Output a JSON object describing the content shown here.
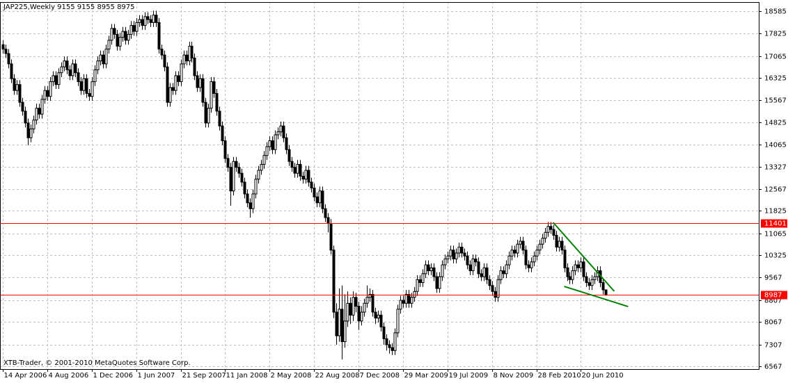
{
  "chart_data": {
    "type": "candlestick",
    "title": "JAP225,Weekly  9155 9155 8955 8975",
    "watermark": "XTB-Trader, © 2001-2010 MetaQuotes Software Corp.",
    "xlim": [
      -1,
      272
    ],
    "ylim": [
      6473,
      18891
    ],
    "grid": true,
    "bull_color": "#ffffff",
    "bear_color": "#000000",
    "outline_color": "#000000",
    "yticks": [
      18585,
      17825,
      17065,
      16325,
      15567,
      14825,
      14065,
      13327,
      12567,
      11825,
      11065,
      10325,
      9567,
      8807,
      8067,
      7307,
      6567
    ],
    "xticks": [
      {
        "value": 0,
        "label": "14 Apr 2006"
      },
      {
        "value": 16,
        "label": "4 Aug 2006"
      },
      {
        "value": 32,
        "label": "1 Dec 2006"
      },
      {
        "value": 48,
        "label": "1 Jun 2007"
      },
      {
        "value": 64,
        "label": "21 Sep 2007"
      },
      {
        "value": 80,
        "label": "11 Jan 2008"
      },
      {
        "value": 96,
        "label": "2 May 2008"
      },
      {
        "value": 112,
        "label": "22 Aug 2008"
      },
      {
        "value": 128,
        "label": "7 Dec 2008"
      },
      {
        "value": 144,
        "label": "29 Mar 2009"
      },
      {
        "value": 160,
        "label": "19 Jul 2009"
      },
      {
        "value": 176,
        "label": "8 Nov 2009"
      },
      {
        "value": 192,
        "label": "28 Feb 2010"
      },
      {
        "value": 208,
        "label": "20 Jun 2010"
      }
    ],
    "hlines": [
      {
        "value": 11401,
        "label": "11401",
        "color": "#ff0000"
      },
      {
        "value": 8987,
        "label": "8987",
        "color": "#ff0000"
      }
    ],
    "trendlines": [
      {
        "color": "#008000",
        "x": [
          198,
          220
        ],
        "y": [
          11435,
          9107
        ]
      },
      {
        "color": "#008000",
        "x": [
          202,
          225
        ],
        "y": [
          9271,
          8589
        ]
      }
    ],
    "open": [
      17450,
      17300,
      17150,
      16800,
      16300,
      15900,
      16100,
      15500,
      15200,
      14800,
      14300,
      14600,
      14900,
      15300,
      15100,
      15600,
      15900,
      15700,
      16200,
      16400,
      16100,
      16500,
      16700,
      16900,
      16600,
      16400,
      16800,
      16500,
      16200,
      15900,
      16300,
      15800,
      15700,
      16200,
      16600,
      16900,
      17100,
      16800,
      17300,
      17600,
      18000,
      17800,
      17400,
      17700,
      17900,
      17600,
      17800,
      18100,
      17900,
      18200,
      18300,
      18100,
      18400,
      18300,
      18200,
      18450,
      18200,
      17300,
      17100,
      16700,
      15500,
      16000,
      15900,
      16400,
      16200,
      16800,
      17100,
      16900,
      17400,
      17000,
      16400,
      16000,
      16300,
      15500,
      14800,
      15300,
      16200,
      15800,
      15200,
      14700,
      14200,
      13600,
      13300,
      12500,
      13500,
      13300,
      13100,
      12800,
      12400,
      12100,
      11900,
      12400,
      12900,
      13200,
      13400,
      13700,
      14000,
      14200,
      13900,
      14400,
      14500,
      14700,
      14300,
      13900,
      13500,
      13300,
      13100,
      13400,
      13000,
      12900,
      13200,
      12800,
      12600,
      12300,
      12100,
      12500,
      11900,
      11600,
      11400,
      10500,
      8400,
      7600,
      8500,
      7400,
      8100,
      8700,
      8300,
      8900,
      8600,
      8100,
      8400,
      8700,
      8900,
      9000,
      8400,
      8200,
      8300,
      7900,
      7500,
      7300,
      7200,
      7100,
      7700,
      8500,
      8800,
      8700,
      9000,
      8700,
      8900,
      9100,
      9500,
      9400,
      9700,
      10000,
      9800,
      9900,
      9600,
      9200,
      9600,
      10000,
      10200,
      10300,
      10500,
      10200,
      10400,
      10600,
      10400,
      10300,
      10000,
      9800,
      10200,
      10100,
      9700,
      9600,
      9900,
      9500,
      9300,
      9100,
      8900,
      9500,
      9800,
      9700,
      10000,
      10300,
      10500,
      10400,
      10700,
      10800,
      10500,
      10000,
      9900,
      10100,
      10300,
      10500,
      10700,
      10900,
      11100,
      11300,
      11200,
      11000,
      10600,
      10800,
      10500,
      9900,
      9600,
      9500,
      9800,
      10000,
      9900,
      10100,
      9600,
      9400,
      9300,
      9500,
      9600,
      9800,
      9400,
      9155
    ],
    "high": [
      17600,
      17450,
      17300,
      16950,
      16450,
      16250,
      16250,
      15650,
      15350,
      14950,
      14750,
      15050,
      15450,
      15450,
      15750,
      16050,
      16050,
      16350,
      16550,
      16550,
      16650,
      16850,
      17050,
      17050,
      16750,
      16950,
      16950,
      16650,
      16350,
      16450,
      16450,
      15950,
      16350,
      16750,
      17050,
      17250,
      17250,
      17450,
      17750,
      18150,
      18150,
      17950,
      17850,
      18050,
      18050,
      17950,
      18250,
      18250,
      18350,
      18450,
      18450,
      18550,
      18550,
      18450,
      18600,
      18600,
      18350,
      17450,
      17250,
      16850,
      16150,
      16150,
      16550,
      16550,
      16950,
      17250,
      17250,
      17550,
      17550,
      17150,
      16550,
      16450,
      16450,
      15650,
      15450,
      16350,
      16350,
      15950,
      15350,
      14850,
      14350,
      13750,
      13450,
      13650,
      13650,
      13450,
      13250,
      12950,
      12550,
      12250,
      12550,
      13050,
      13350,
      13550,
      13850,
      14150,
      14350,
      14350,
      14550,
      14650,
      14850,
      14850,
      14450,
      14050,
      13650,
      13450,
      13550,
      13550,
      13150,
      13350,
      13350,
      12950,
      12750,
      12450,
      12650,
      12650,
      12050,
      11750,
      11550,
      10650,
      8700,
      9200,
      9300,
      9000,
      9100,
      8900,
      9100,
      9050,
      8750,
      8600,
      8850,
      9300,
      9200,
      9150,
      8550,
      8450,
      8450,
      8050,
      7650,
      7450,
      7350,
      7850,
      8650,
      8950,
      8950,
      9150,
      9150,
      9050,
      9250,
      9650,
      9650,
      9850,
      10150,
      10150,
      10050,
      10050,
      9750,
      9750,
      10150,
      10350,
      10450,
      10650,
      10650,
      10550,
      10750,
      10750,
      10550,
      10450,
      10150,
      10350,
      10350,
      10250,
      9850,
      10050,
      10050,
      9650,
      9450,
      9250,
      9650,
      9950,
      9950,
      10150,
      10450,
      10650,
      10650,
      10850,
      10950,
      10950,
      10650,
      10150,
      10250,
      10450,
      10650,
      10850,
      11050,
      11250,
      11450,
      11450,
      11350,
      11150,
      10950,
      10950,
      10650,
      10050,
      9750,
      9950,
      10150,
      10150,
      10250,
      10250,
      9750,
      9550,
      9650,
      9750,
      9950,
      9950,
      9550,
      9155
    ],
    "low": [
      17150,
      17000,
      16650,
      16150,
      15750,
      15750,
      15350,
      15050,
      14650,
      14050,
      14150,
      14450,
      14750,
      14950,
      14950,
      15450,
      15550,
      15550,
      16050,
      15950,
      15950,
      16350,
      16550,
      16450,
      16250,
      16250,
      16350,
      16050,
      15750,
      15750,
      15650,
      15550,
      15550,
      16050,
      16450,
      16750,
      16650,
      16650,
      17150,
      17450,
      17650,
      17250,
      17250,
      17550,
      17450,
      17450,
      17650,
      17750,
      17750,
      18050,
      17950,
      17950,
      18150,
      18050,
      18050,
      18050,
      17150,
      16950,
      16550,
      15350,
      15350,
      15750,
      15750,
      16050,
      16050,
      16650,
      16750,
      16750,
      16850,
      16250,
      15850,
      15850,
      15350,
      14650,
      14650,
      15150,
      15650,
      15050,
      14550,
      14050,
      13450,
      13150,
      12000,
      12350,
      13150,
      12950,
      12650,
      12250,
      11950,
      11600,
      11750,
      12250,
      12750,
      13050,
      13250,
      13550,
      13850,
      13750,
      13750,
      14250,
      14350,
      14150,
      13750,
      13350,
      13150,
      12950,
      12950,
      12850,
      12750,
      12750,
      12650,
      12450,
      12150,
      11950,
      11950,
      11750,
      11450,
      11100,
      10350,
      8200,
      7300,
      7400,
      6800,
      7200,
      7900,
      8000,
      8100,
      8400,
      7800,
      7950,
      8250,
      8550,
      8750,
      8250,
      8000,
      8050,
      7750,
      7300,
      7100,
      7000,
      6950,
      6950,
      7550,
      8350,
      8550,
      8550,
      8550,
      8550,
      8750,
      8950,
      9250,
      9250,
      9550,
      9650,
      9650,
      9450,
      9050,
      9050,
      9450,
      9850,
      10050,
      10150,
      10050,
      10050,
      10250,
      10250,
      10150,
      9850,
      9650,
      9650,
      9950,
      9550,
      9450,
      9450,
      9350,
      9150,
      8950,
      8750,
      8750,
      9350,
      9550,
      9550,
      9850,
      10150,
      10250,
      10250,
      10550,
      10350,
      9850,
      9750,
      9750,
      9950,
      10150,
      10350,
      10550,
      10750,
      10950,
      11050,
      10850,
      10450,
      10450,
      10350,
      9750,
      9450,
      9350,
      9350,
      9650,
      9750,
      9750,
      9450,
      9250,
      9150,
      9150,
      9350,
      9450,
      9250,
      9000,
      8955
    ],
    "close": [
      17300,
      17150,
      16800,
      16300,
      15900,
      16100,
      15500,
      15200,
      14800,
      14300,
      14600,
      14900,
      15300,
      15100,
      15600,
      15900,
      15700,
      16200,
      16400,
      16100,
      16500,
      16700,
      16900,
      16600,
      16400,
      16800,
      16500,
      16200,
      15900,
      16300,
      15800,
      15700,
      16200,
      16600,
      16900,
      17100,
      16800,
      17300,
      17600,
      18000,
      17800,
      17400,
      17700,
      17900,
      17600,
      17800,
      18100,
      17900,
      18200,
      18300,
      18100,
      18400,
      18300,
      18200,
      18450,
      18200,
      17300,
      17100,
      16700,
      15500,
      16000,
      15900,
      16400,
      16200,
      16800,
      17100,
      16900,
      17400,
      17000,
      16400,
      16000,
      16300,
      15500,
      14800,
      15300,
      16200,
      15800,
      15200,
      14700,
      14200,
      13600,
      13300,
      12500,
      13500,
      13300,
      13100,
      12800,
      12400,
      12100,
      11900,
      12400,
      12900,
      13200,
      13400,
      13700,
      14000,
      14200,
      13900,
      14400,
      14500,
      14700,
      14300,
      13900,
      13500,
      13300,
      13100,
      13400,
      13000,
      12900,
      13200,
      12800,
      12600,
      12300,
      12100,
      12500,
      11900,
      11600,
      11400,
      10500,
      8400,
      7600,
      8500,
      7400,
      8100,
      8700,
      8300,
      8900,
      8600,
      8100,
      8400,
      8700,
      8900,
      9000,
      8400,
      8200,
      8300,
      7900,
      7500,
      7300,
      7200,
      7100,
      7700,
      8500,
      8800,
      8700,
      9000,
      8700,
      8900,
      9100,
      9500,
      9400,
      9700,
      10000,
      9800,
      9900,
      9600,
      9200,
      9600,
      10000,
      10200,
      10300,
      10500,
      10200,
      10400,
      10600,
      10400,
      10300,
      10000,
      9800,
      10200,
      10100,
      9700,
      9600,
      9900,
      9500,
      9300,
      9100,
      8900,
      9500,
      9800,
      9700,
      10000,
      10300,
      10500,
      10400,
      10700,
      10800,
      10500,
      10000,
      9900,
      10100,
      10300,
      10500,
      10700,
      10900,
      11100,
      11300,
      11200,
      11000,
      10600,
      10800,
      10500,
      9900,
      9600,
      9500,
      9800,
      10000,
      9900,
      10100,
      9600,
      9400,
      9300,
      9500,
      9600,
      9800,
      9400,
      9155,
      8975
    ]
  }
}
